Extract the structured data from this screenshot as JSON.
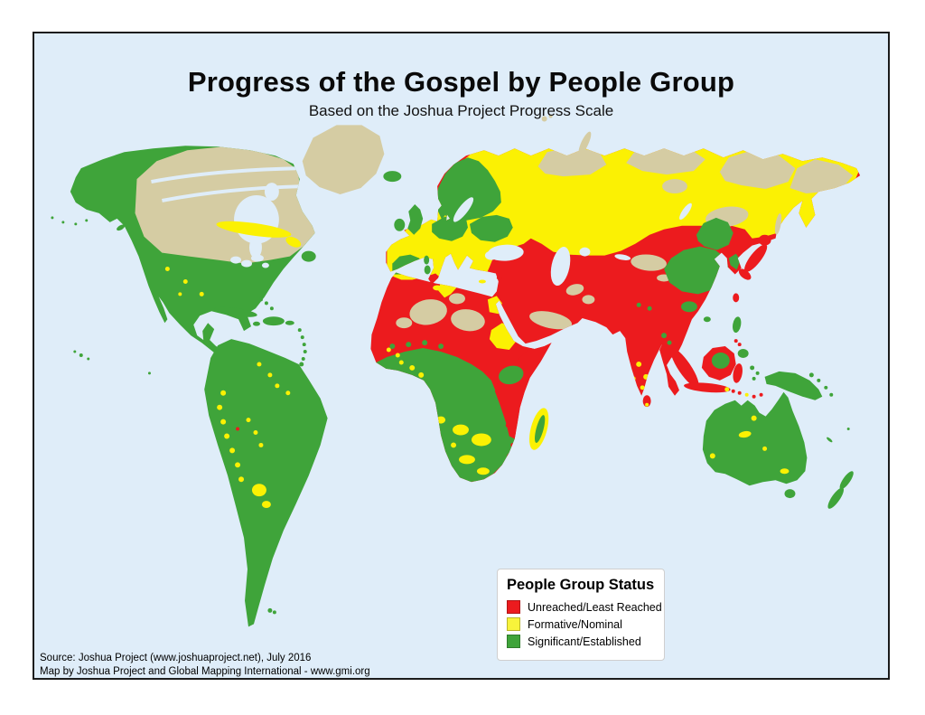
{
  "page": {
    "title": "Progress of the Gospel by People Group",
    "subtitle": "Based on the Joshua Project Progress Scale"
  },
  "legend": {
    "title": "People Group Status",
    "items": [
      {
        "id": "unreached",
        "label": "Unreached/Least Reached",
        "color": "#EC1B1E"
      },
      {
        "id": "formative",
        "label": "Formative/Nominal",
        "color": "#F8F33B"
      },
      {
        "id": "significant",
        "label": "Significant/Established",
        "color": "#3FA43A"
      }
    ]
  },
  "source": {
    "line1": "Source: Joshua Project (www.joshuaproject.net), July 2016",
    "line2": "Map by Joshua Project and Global Mapping International - www.gmi.org"
  },
  "map": {
    "colors": {
      "unreached_red": "#EC1B1E",
      "formative_yellow": "#FBF103",
      "significant_green": "#3FA43A",
      "no_data_tan": "#D5CCA3",
      "ocean": "#DFEDF9"
    }
  }
}
